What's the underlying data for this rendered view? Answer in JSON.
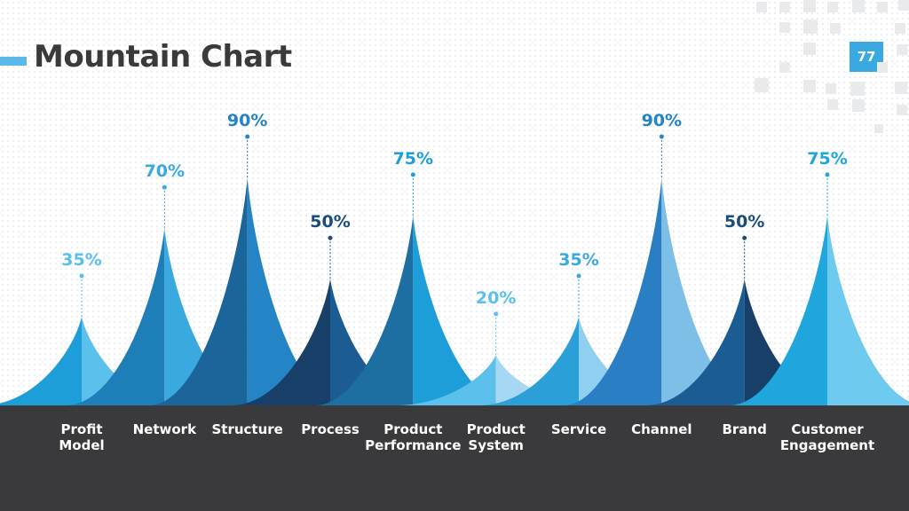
{
  "title": "Mountain Chart",
  "page_number": "77",
  "colors": {
    "accent": "#5ab9e8",
    "badge": "#3aa9df",
    "footer": "#3a393b",
    "title_text": "#3a3a3c"
  },
  "chart_data": {
    "type": "area",
    "subtype": "mountain",
    "title": "Mountain Chart",
    "categories": [
      [
        "Profit",
        "Model"
      ],
      [
        "Network"
      ],
      [
        "Structure"
      ],
      [
        "Process"
      ],
      [
        "Product",
        "Performance"
      ],
      [
        "Product",
        "System"
      ],
      [
        "Service"
      ],
      [
        "Channel"
      ],
      [
        "Brand"
      ],
      [
        "Customer",
        "Engagement"
      ]
    ],
    "values": [
      35,
      70,
      90,
      50,
      75,
      20,
      35,
      90,
      50,
      75
    ],
    "labels": [
      "35%",
      "70%",
      "90%",
      "50%",
      "75%",
      "20%",
      "35%",
      "90%",
      "50%",
      "75%"
    ],
    "ylim": [
      0,
      100
    ],
    "grid": false,
    "legend": "none",
    "peak_colors": [
      [
        "#1e9ed8",
        "#5cc0ec",
        "#5bbfec"
      ],
      [
        "#1e7fb8",
        "#3aa9df",
        "#3aa9df"
      ],
      [
        "#1b659b",
        "#2484c6",
        "#2484c6"
      ],
      [
        "#173f68",
        "#1b5d93",
        "#1b4d7c"
      ],
      [
        "#1c6fa0",
        "#1e9ed8",
        "#1e9ed8"
      ],
      [
        "#5cc0ec",
        "#a7d8f3",
        "#5cc0ec"
      ],
      [
        "#2a9fd8",
        "#8fd0f1",
        "#2a9fd8"
      ],
      [
        "#2a7ec4",
        "#7dbfe6",
        "#2a7ec4"
      ],
      [
        "#1b5d93",
        "#173f68",
        "#1b5d93"
      ],
      [
        "#1ea6dd",
        "#6fcaf0",
        "#1ea6dd"
      ]
    ]
  }
}
